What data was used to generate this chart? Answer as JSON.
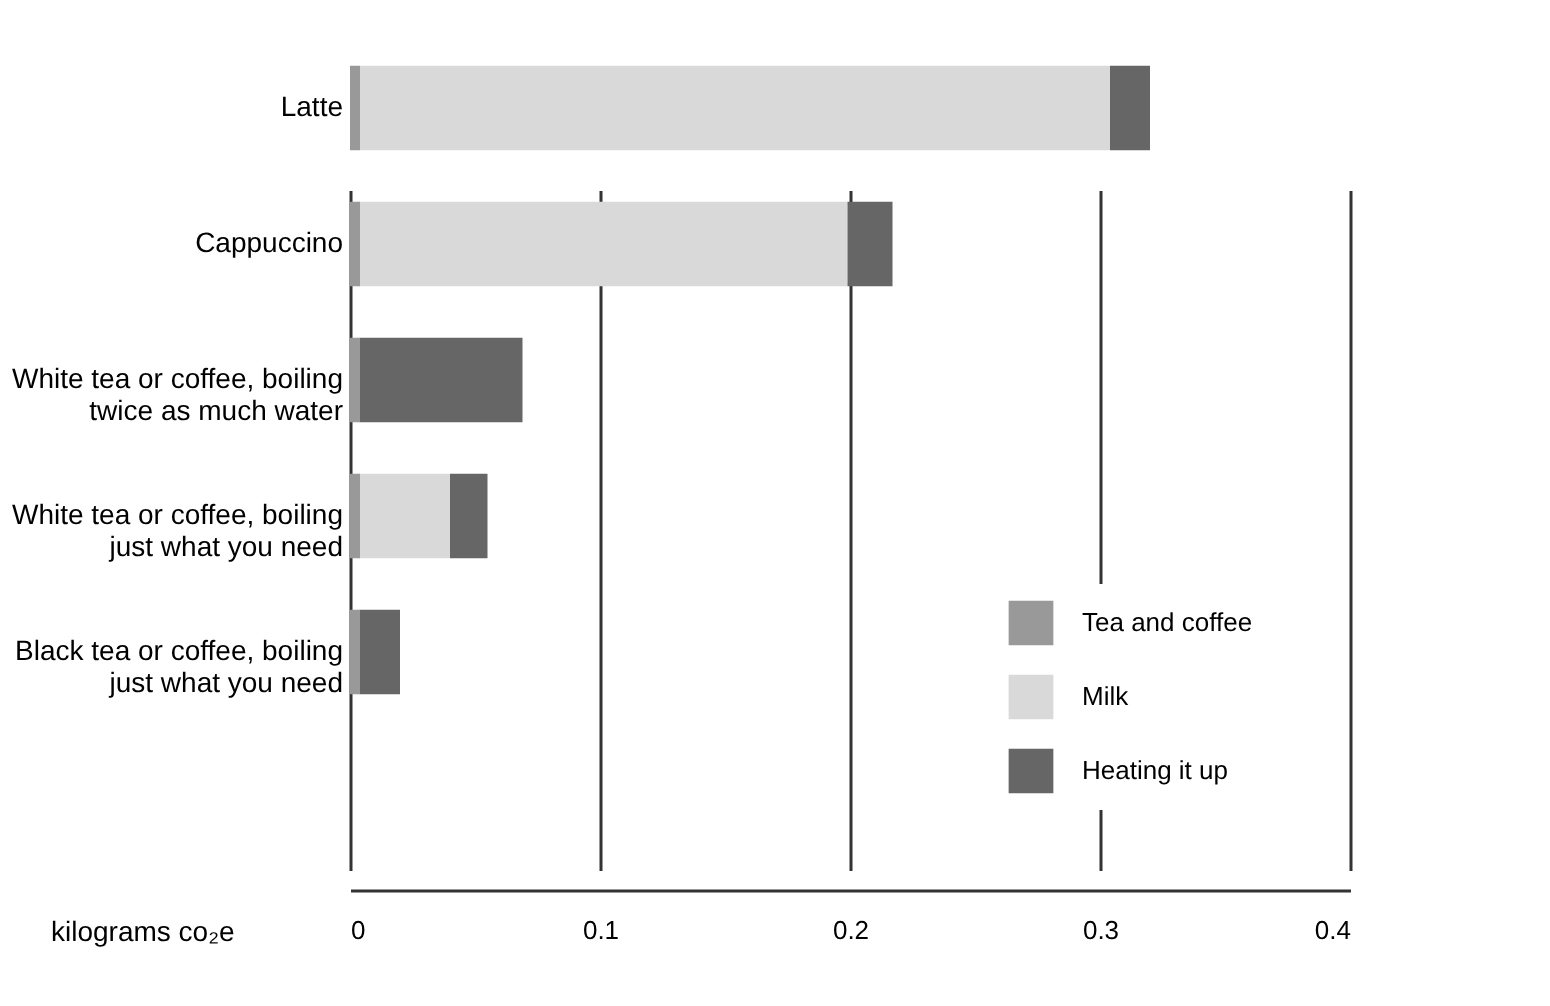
{
  "chart_data": {
    "type": "bar",
    "orientation": "horizontal",
    "stacked": true,
    "categories": [
      "Latte",
      "Cappuccino",
      "White tea or coffee, boiling\ntwice as much water",
      "White tea or coffee, boiling\njust what you need",
      "Black tea or coffee, boiling\njust what you need"
    ],
    "series": [
      {
        "name": "Tea and coffee",
        "color": "#999999",
        "values": [
          0.004,
          0.004,
          0.004,
          0.004,
          0.004
        ]
      },
      {
        "name": "Milk",
        "color": "#d9d9d9",
        "values": [
          0.3,
          0.195,
          0,
          0.036,
          0
        ]
      },
      {
        "name": "Heating it up",
        "color": "#666666",
        "values": [
          0.016,
          0.018,
          0.065,
          0.015,
          0.016
        ]
      }
    ],
    "xlabel": "kilograms co₂e",
    "xlim": [
      0,
      0.4
    ],
    "xticks": [
      0,
      0.1,
      0.2,
      0.3,
      0.4
    ],
    "grid": "x",
    "legend": "bottom right"
  }
}
